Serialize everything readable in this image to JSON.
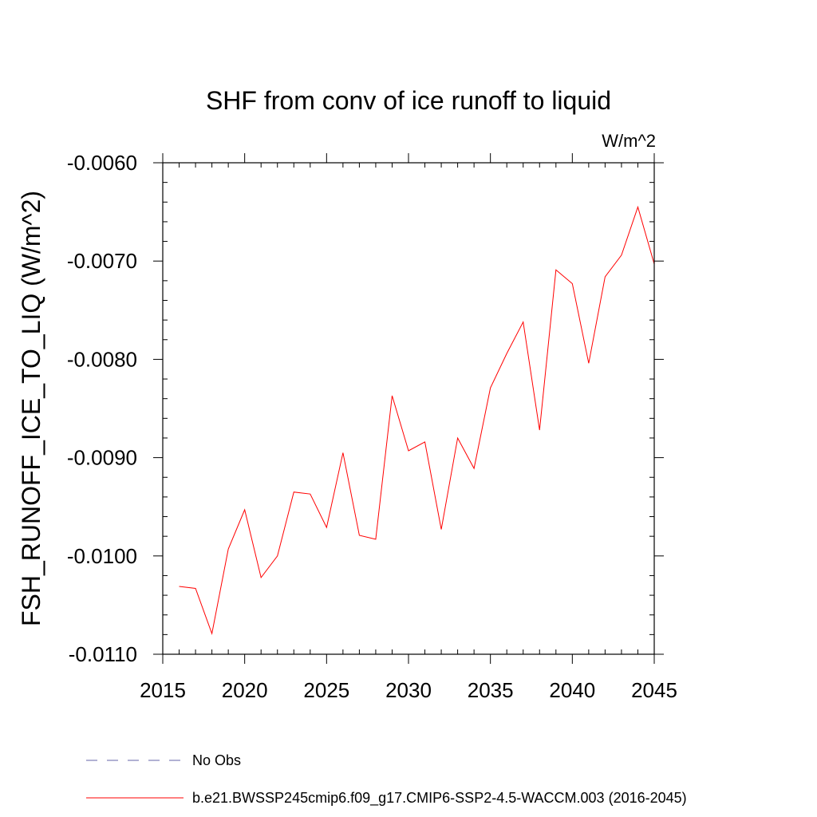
{
  "chart_data": {
    "type": "line",
    "title": "SHF from conv of ice runoff to liquid",
    "units_label": "W/m^2",
    "xlabel": "",
    "ylabel": "FSH_RUNOFF_ICE_TO_LIQ  (W/m^2)",
    "xlim": [
      2015,
      2045
    ],
    "ylim": [
      -0.011,
      -0.006
    ],
    "x_ticks": [
      2015,
      2020,
      2025,
      2030,
      2035,
      2040,
      2045
    ],
    "x_tick_labels": [
      "2015",
      "2020",
      "2025",
      "2030",
      "2035",
      "2040",
      "2045"
    ],
    "y_ticks": [
      -0.011,
      -0.01,
      -0.009,
      -0.008,
      -0.007,
      -0.006
    ],
    "y_tick_labels": [
      "-0.0110",
      "-0.0100",
      "-0.0090",
      "-0.0080",
      "-0.0070",
      "-0.0060"
    ],
    "grid": false,
    "series": [
      {
        "name": "b.e21.BWSSP245cmip6.f09_g17.CMIP6-SSP2-4.5-WACCM.003 (2016-2045)",
        "color": "#ff0000",
        "x": [
          2016,
          2017,
          2018,
          2019,
          2020,
          2021,
          2022,
          2023,
          2024,
          2025,
          2026,
          2027,
          2028,
          2029,
          2030,
          2031,
          2032,
          2033,
          2034,
          2035,
          2036,
          2037,
          2038,
          2039,
          2040,
          2041,
          2042,
          2043,
          2044,
          2045
        ],
        "values": [
          -0.01031,
          -0.01033,
          -0.01079,
          -0.00993,
          -0.00953,
          -0.01022,
          -0.01,
          -0.00935,
          -0.00937,
          -0.00971,
          -0.00895,
          -0.00979,
          -0.00983,
          -0.00837,
          -0.00893,
          -0.00884,
          -0.00973,
          -0.0088,
          -0.00911,
          -0.00829,
          -0.00794,
          -0.00762,
          -0.00872,
          -0.00709,
          -0.00723,
          -0.00804,
          -0.00716,
          -0.00694,
          -0.00645,
          -0.00703
        ]
      }
    ],
    "legend": [
      {
        "label": "No Obs",
        "style": "dashed",
        "color": "#6666aa"
      },
      {
        "label": "b.e21.BWSSP245cmip6.f09_g17.CMIP6-SSP2-4.5-WACCM.003 (2016-2045)",
        "style": "solid",
        "color": "#ff0000"
      }
    ]
  }
}
